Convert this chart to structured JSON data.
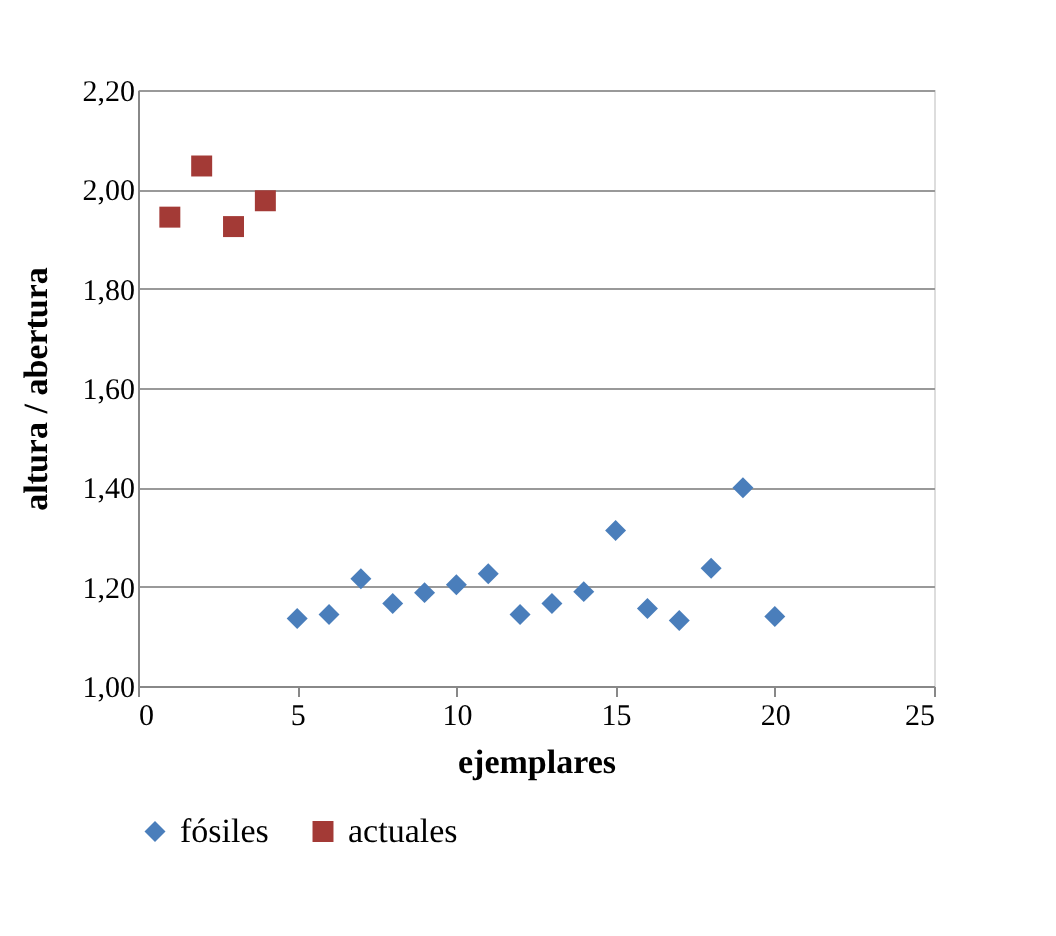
{
  "chart_data": {
    "type": "scatter",
    "xlabel": "ejemplares",
    "ylabel": "altura / abertura",
    "xlim": [
      0,
      25
    ],
    "xticks": [
      0,
      5,
      10,
      15,
      20,
      25
    ],
    "ylim": [
      1.0,
      2.2
    ],
    "yticks": [
      {
        "value": 1.0,
        "label": "1,00"
      },
      {
        "value": 1.2,
        "label": "1,20"
      },
      {
        "value": 1.4,
        "label": "1,40"
      },
      {
        "value": 1.6,
        "label": "1,60"
      },
      {
        "value": 1.8,
        "label": "1,80"
      },
      {
        "value": 2.0,
        "label": "2,00"
      },
      {
        "value": 2.2,
        "label": "2,20"
      }
    ],
    "grid": "y",
    "legend": "bottom",
    "series": [
      {
        "name": "fósiles",
        "color": "#4a7ebb",
        "marker": "diamond",
        "x": [
          5,
          6,
          7,
          8,
          9,
          10,
          11,
          12,
          13,
          14,
          15,
          16,
          17,
          18,
          19,
          20
        ],
        "values": [
          1.136,
          1.144,
          1.216,
          1.166,
          1.188,
          1.204,
          1.226,
          1.144,
          1.166,
          1.19,
          1.313,
          1.156,
          1.132,
          1.237,
          1.399,
          1.14
        ]
      },
      {
        "name": "actuales",
        "color": "#a33a36",
        "marker": "square",
        "x": [
          1,
          2,
          3,
          4
        ],
        "values": [
          1.944,
          2.047,
          1.925,
          1.977
        ]
      }
    ]
  }
}
